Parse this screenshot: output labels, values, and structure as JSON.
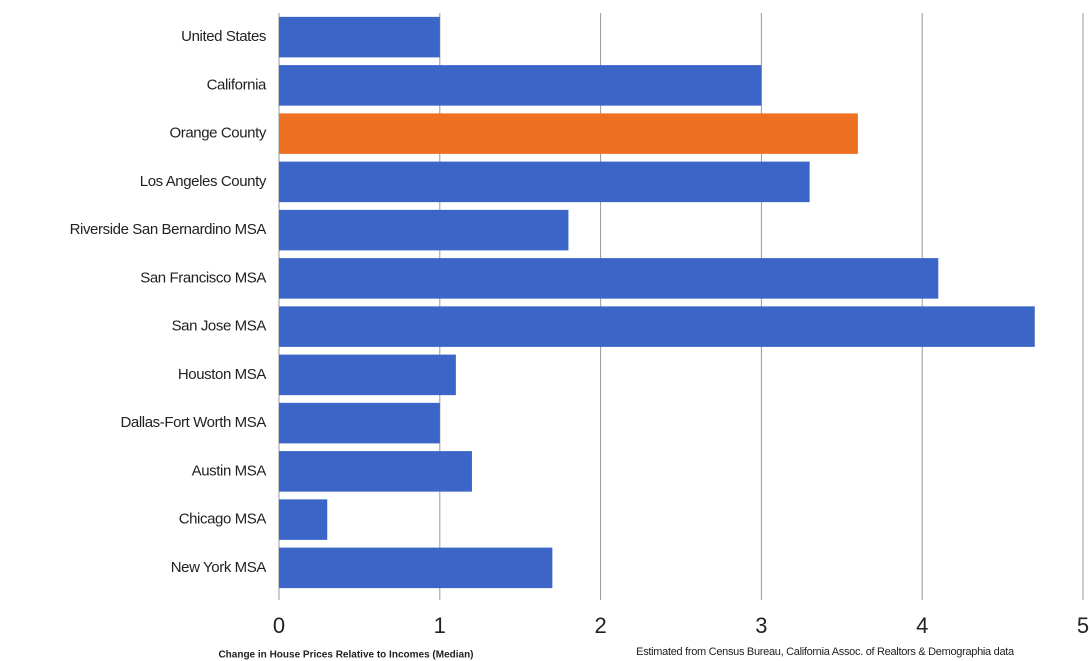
{
  "chart_data": {
    "type": "hbar",
    "categories": [
      "United States",
      "California",
      "Orange County",
      "Los Angeles County",
      "Riverside San Bernardino MSA",
      "San Francisco MSA",
      "San Jose MSA",
      "Houston MSA",
      "Dallas-Fort Worth MSA",
      "Austin MSA",
      "Chicago MSA",
      "New York MSA"
    ],
    "values": [
      1.0,
      3.0,
      3.6,
      3.3,
      1.8,
      4.1,
      4.7,
      1.1,
      1.0,
      1.2,
      0.3,
      1.7
    ],
    "colors": [
      "#3b66c7",
      "#3b66c7",
      "#ed7023",
      "#3b66c7",
      "#3b66c7",
      "#3b66c7",
      "#3b66c7",
      "#3b66c7",
      "#3b66c7",
      "#3b66c7",
      "#3b66c7",
      "#3b66c7"
    ],
    "xlim": [
      0,
      5
    ],
    "xticks": [
      0,
      1,
      2,
      3,
      4,
      5
    ],
    "grid": true,
    "xlabel": "Change in House Prices Relative to Incomes (Median)",
    "note": "Estimated from Census Bureau, California Assoc. of Realtors & Demographia data"
  }
}
